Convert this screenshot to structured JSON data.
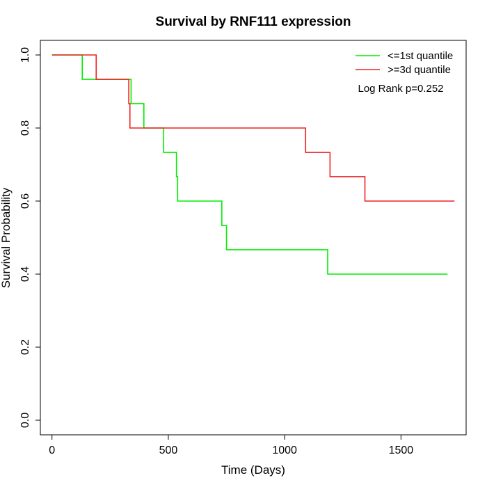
{
  "chart_data": {
    "type": "line",
    "title": "Survival by RNF111 expression",
    "xlabel": "Time (Days)",
    "ylabel": "Survival Probability",
    "xlim": [
      -50,
      1780
    ],
    "ylim": [
      -0.04,
      1.04
    ],
    "xticks": [
      0,
      500,
      1000,
      1500
    ],
    "yticks": [
      0.0,
      0.2,
      0.4,
      0.6,
      0.8,
      1.0
    ],
    "ytick_labels": [
      "0.0",
      "0.2",
      "0.4",
      "0.6",
      "0.8",
      "1.0"
    ],
    "grid": false,
    "legend_position": "top-right",
    "annotation": "Log Rank p=0.252",
    "series": [
      {
        "name": "<=1st quantile",
        "color": "#00ee00",
        "step": true,
        "points": [
          [
            0,
            1.0
          ],
          [
            130,
            1.0
          ],
          [
            130,
            0.9333
          ],
          [
            340,
            0.9333
          ],
          [
            340,
            0.8667
          ],
          [
            395,
            0.8667
          ],
          [
            395,
            0.8
          ],
          [
            480,
            0.8
          ],
          [
            480,
            0.7333
          ],
          [
            535,
            0.7333
          ],
          [
            535,
            0.6667
          ],
          [
            540,
            0.6667
          ],
          [
            540,
            0.6
          ],
          [
            730,
            0.6
          ],
          [
            730,
            0.5333
          ],
          [
            750,
            0.5333
          ],
          [
            750,
            0.4667
          ],
          [
            1185,
            0.4667
          ],
          [
            1185,
            0.4
          ],
          [
            1700,
            0.4
          ]
        ]
      },
      {
        "name": ">=3d quantile",
        "color": "#ee2222",
        "step": true,
        "points": [
          [
            0,
            1.0
          ],
          [
            190,
            1.0
          ],
          [
            190,
            0.9333
          ],
          [
            330,
            0.9333
          ],
          [
            330,
            0.8667
          ],
          [
            335,
            0.8667
          ],
          [
            335,
            0.8
          ],
          [
            1090,
            0.8
          ],
          [
            1090,
            0.7333
          ],
          [
            1195,
            0.7333
          ],
          [
            1195,
            0.6667
          ],
          [
            1345,
            0.6667
          ],
          [
            1345,
            0.6
          ],
          [
            1730,
            0.6
          ]
        ]
      }
    ]
  }
}
